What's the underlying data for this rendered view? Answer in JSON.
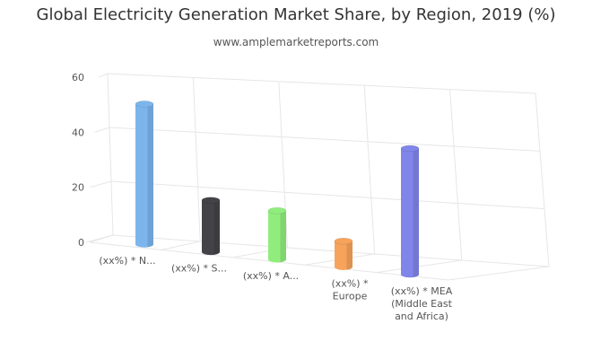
{
  "chart_data": {
    "type": "bar",
    "title": "Global Electricity Generation Market Share, by Region, 2019 (%)",
    "subtitle": "www.amplemarketreports.com",
    "categories": [
      "(xx%) * N...",
      "(xx%) * S...",
      "(xx%) * A...",
      "(xx%) * Europe",
      "(xx%) * MEA (Middle East and Africa)"
    ],
    "category_lines": [
      [
        "(xx%) * N..."
      ],
      [
        "(xx%) * S..."
      ],
      [
        "(xx%) * A..."
      ],
      [
        "(xx%) *",
        "Europe"
      ],
      [
        "(xx%) * MEA",
        "(Middle East",
        "and Africa)"
      ]
    ],
    "series": [
      {
        "values": [
          49,
          18,
          17,
          9,
          44
        ]
      }
    ],
    "colors": [
      "#7cb5ec",
      "#434348",
      "#90ed7d",
      "#f7a35c",
      "#8085e9"
    ],
    "ylim": [
      0,
      60
    ],
    "yticks": [
      0,
      20,
      40,
      60
    ],
    "xlabel": "",
    "ylabel": "",
    "grid": true,
    "legend": "none",
    "style": "3d-cylinder"
  }
}
